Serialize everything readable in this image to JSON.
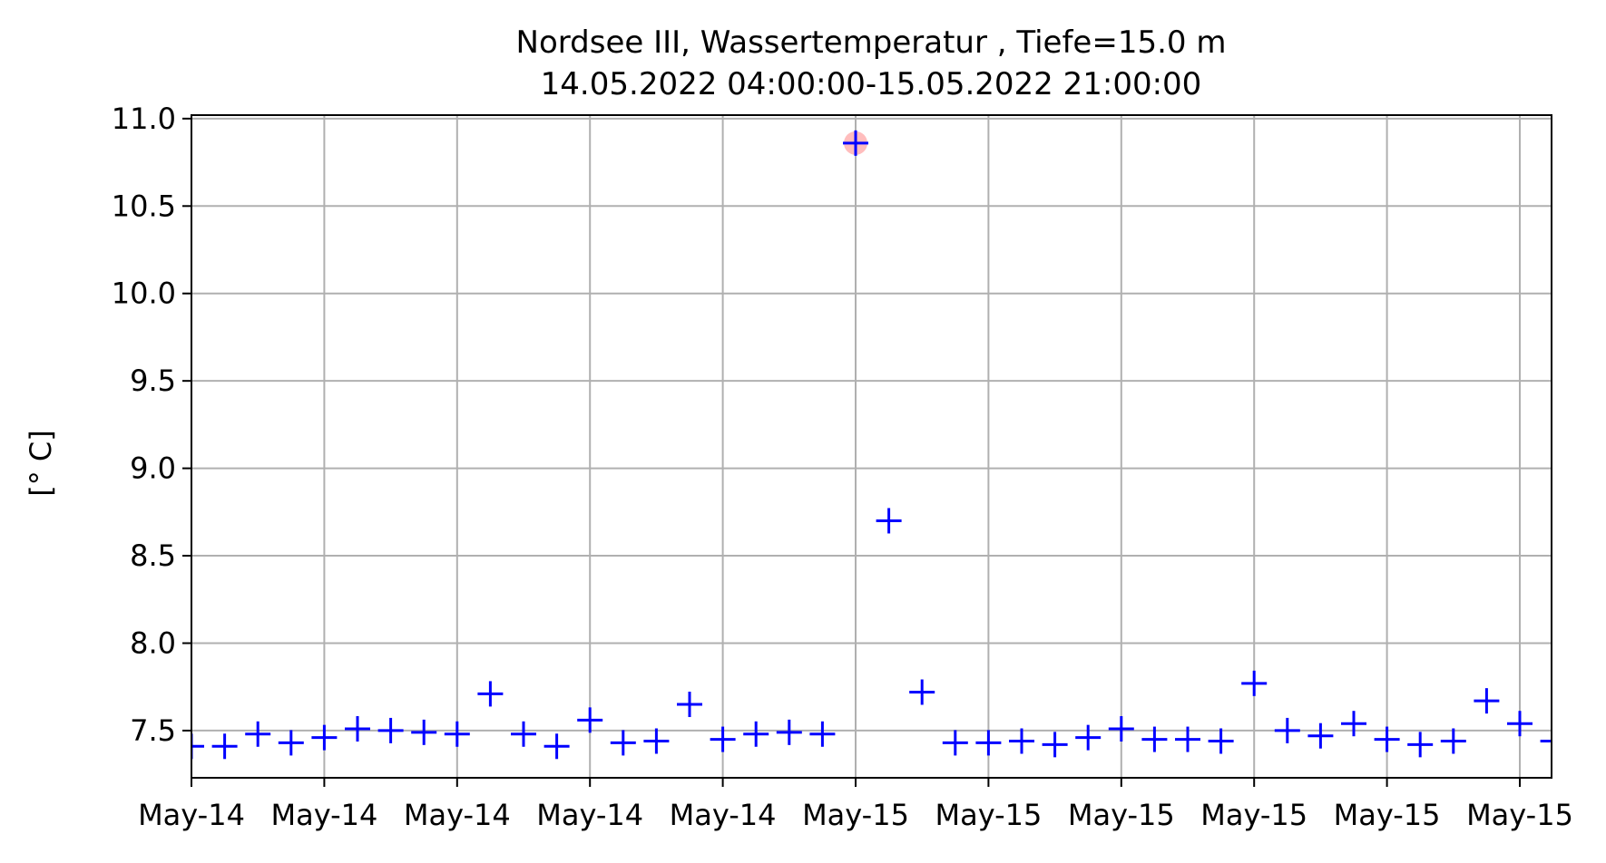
{
  "chart_data": {
    "type": "scatter",
    "title": "Nordsee III, Wassertemperatur , Tiefe=15.0 m",
    "subtitle": "14.05.2022 04:00:00-15.05.2022 21:00:00",
    "xlabel": "",
    "ylabel": "[° C]",
    "x_tick_labels": [
      "May-14",
      "May-14",
      "May-14",
      "May-14",
      "May-14",
      "May-15",
      "May-15",
      "May-15",
      "May-15",
      "May-15",
      "May-15"
    ],
    "y_ticks": [
      "7.5",
      "8.0",
      "8.5",
      "9.0",
      "9.5",
      "10.0",
      "10.5",
      "11.0"
    ],
    "ylim": [
      7.23,
      11.02
    ],
    "grid": true,
    "marker": "plus",
    "colors": {
      "series": "#0000ff",
      "highlight": "#ff9999",
      "grid": "#b0b0b0"
    },
    "x": [
      0,
      1,
      2,
      3,
      4,
      5,
      6,
      7,
      8,
      9,
      10,
      11,
      12,
      13,
      14,
      15,
      16,
      17,
      18,
      19,
      20,
      21,
      22,
      23,
      24,
      25,
      26,
      27,
      28,
      29,
      30,
      31,
      32,
      33,
      34,
      35,
      36,
      37,
      38,
      39,
      40,
      41
    ],
    "values": [
      7.41,
      7.41,
      7.48,
      7.43,
      7.46,
      7.51,
      7.5,
      7.49,
      7.48,
      7.71,
      7.48,
      7.41,
      7.56,
      7.43,
      7.44,
      7.65,
      7.45,
      7.48,
      7.49,
      7.48,
      10.86,
      8.7,
      7.72,
      7.43,
      7.43,
      7.44,
      7.42,
      7.46,
      7.51,
      7.45,
      7.45,
      7.44,
      7.77,
      7.5,
      7.47,
      7.54,
      7.45,
      7.42,
      7.44,
      7.67,
      7.54,
      7.44
    ],
    "highlighted_index": 20
  }
}
